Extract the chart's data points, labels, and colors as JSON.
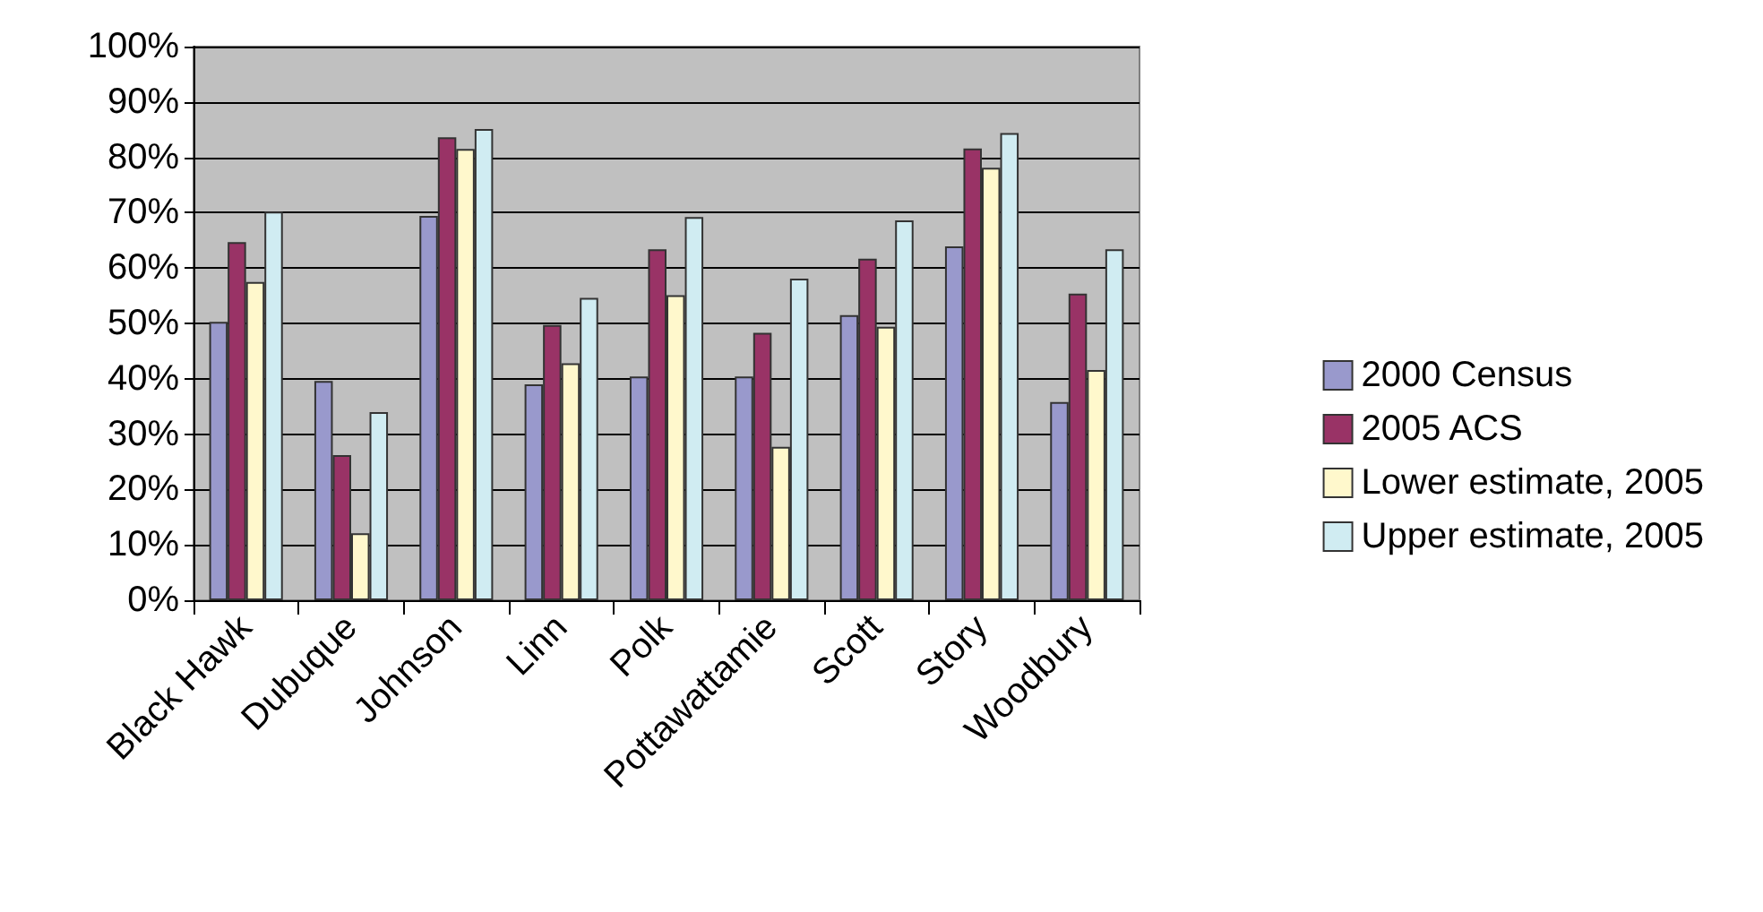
{
  "chart_data": {
    "type": "bar",
    "categories": [
      "Black Hawk",
      "Dubuque",
      "Johnson",
      "Linn",
      "Polk",
      "Pottawattamie",
      "Scott",
      "Story",
      "Woodbury"
    ],
    "series": [
      {
        "name": "2000 Census",
        "color": "#9999cc",
        "values": [
          50.3,
          39.6,
          69.4,
          39.0,
          40.4,
          40.4,
          51.5,
          63.9,
          35.8
        ]
      },
      {
        "name": "2005 ACS",
        "color": "#993366",
        "values": [
          64.7,
          26.2,
          83.6,
          49.7,
          63.4,
          48.3,
          61.7,
          81.6,
          55.4
        ]
      },
      {
        "name": "Lower estimate, 2005",
        "color": "#fff8cc",
        "values": [
          57.5,
          12.1,
          81.5,
          42.8,
          55.1,
          27.7,
          49.4,
          78.1,
          41.6
        ]
      },
      {
        "name": "Upper estimate, 2005",
        "color": "#d0ecf2",
        "values": [
          70.2,
          34.0,
          85.1,
          54.6,
          69.2,
          58.1,
          68.6,
          84.4,
          63.4
        ]
      }
    ],
    "ylim": [
      0,
      100
    ],
    "yticks": [
      {
        "value": 0,
        "label": "0%"
      },
      {
        "value": 10,
        "label": "10%"
      },
      {
        "value": 20,
        "label": "20%"
      },
      {
        "value": 30,
        "label": "30%"
      },
      {
        "value": 40,
        "label": "40%"
      },
      {
        "value": 50,
        "label": "50%"
      },
      {
        "value": 60,
        "label": "60%"
      },
      {
        "value": 70,
        "label": "70%"
      },
      {
        "value": 80,
        "label": "80%"
      },
      {
        "value": 90,
        "label": "90%"
      },
      {
        "value": 100,
        "label": "100%"
      }
    ],
    "grid": "y",
    "legend": "right"
  }
}
